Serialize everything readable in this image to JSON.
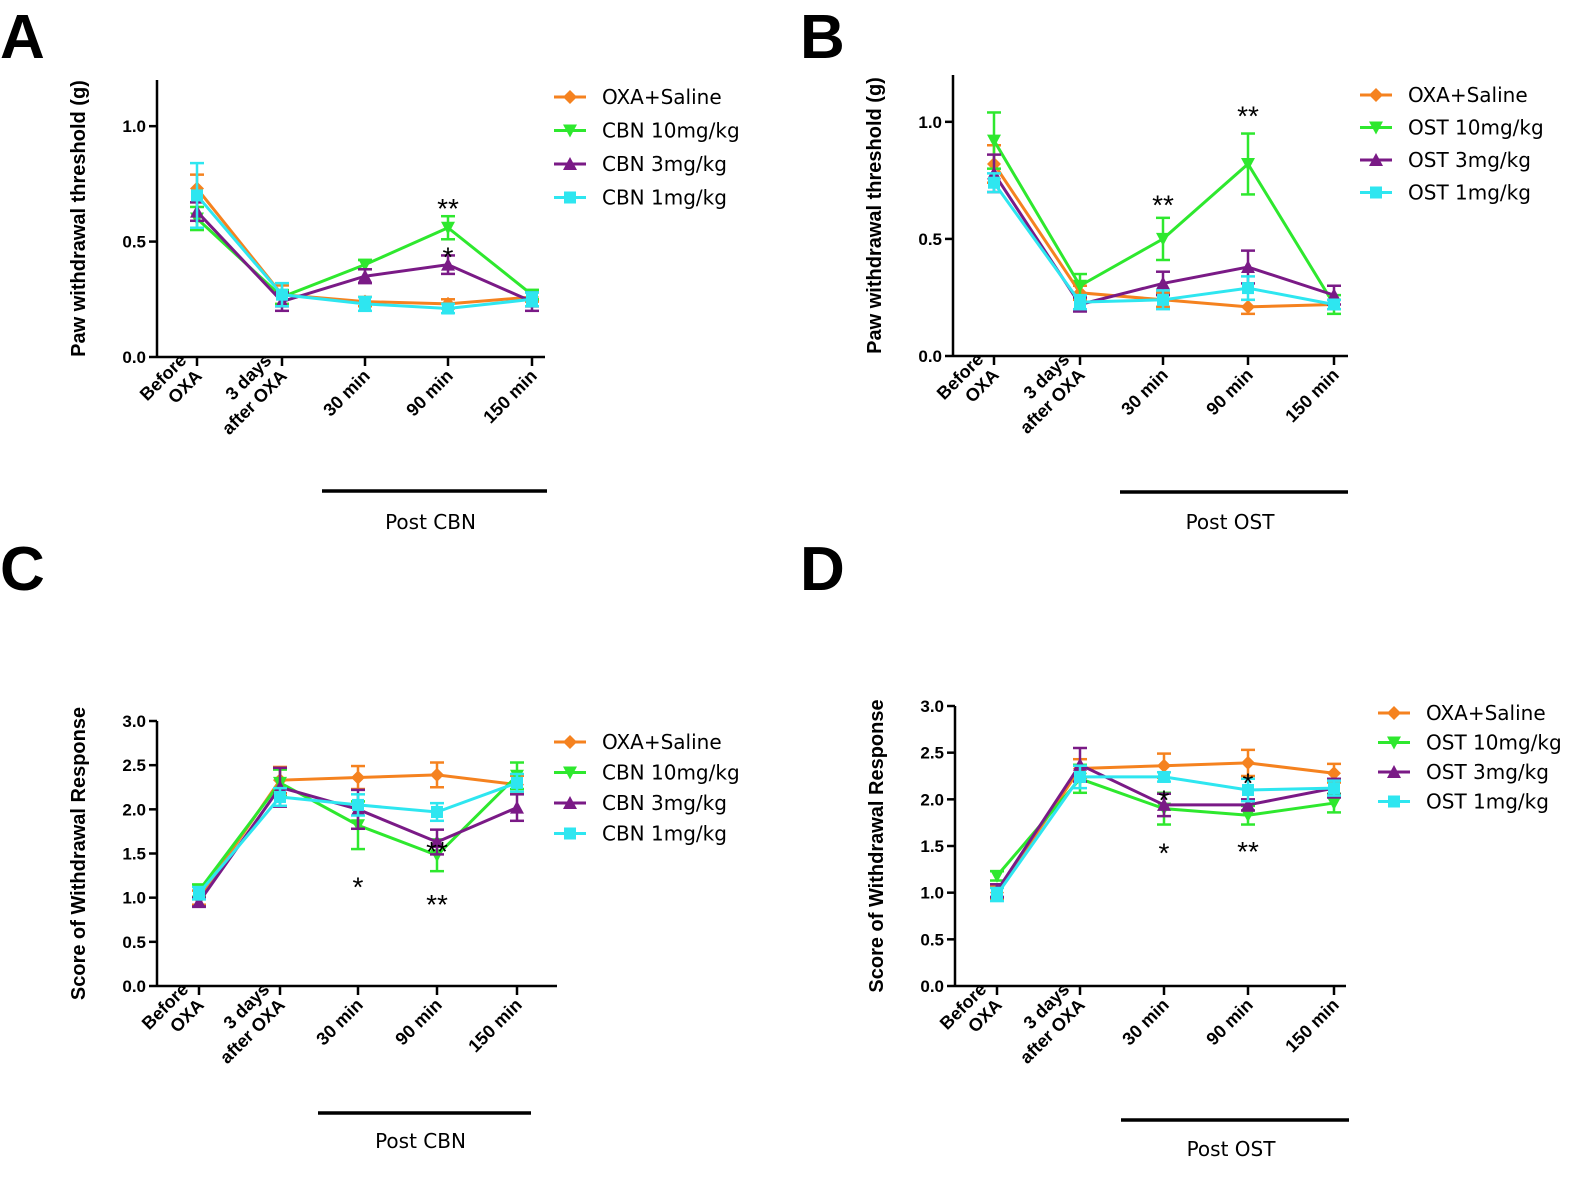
{
  "figure": {
    "categories": [
      [
        "Before",
        "OXA"
      ],
      [
        "3 days",
        "after OXA"
      ],
      [
        "30 min"
      ],
      [
        "90 min"
      ],
      [
        "150 min"
      ]
    ]
  },
  "colors": {
    "saline": "#f5821f",
    "dose10": "#2ee82e",
    "dose3": "#7a1a86",
    "dose1": "#2ee6f0",
    "axis": "#000000"
  },
  "chart_data": [
    {
      "type": "line",
      "panel": "A",
      "ylabel": "Paw withdrawal threshold (g)",
      "ylim": [
        0,
        1.2
      ],
      "yticks": [
        "0.0",
        "0.5",
        "1.0"
      ],
      "ytick_values": [
        0,
        0.5,
        1.0
      ],
      "post_label": "Post CBN",
      "series": [
        {
          "name": "OXA+Saline",
          "marker": "diamond",
          "color_key": "saline",
          "values": [
            0.73,
            0.27,
            0.24,
            0.23,
            0.26
          ],
          "errors": [
            0.06,
            0.04,
            0.02,
            0.02,
            0.02
          ]
        },
        {
          "name": "CBN 10mg/kg",
          "marker": "triangle-down",
          "color_key": "dose10",
          "values": [
            0.6,
            0.26,
            0.4,
            0.56,
            0.27
          ],
          "errors": [
            0.05,
            0.03,
            0.02,
            0.05,
            0.02
          ]
        },
        {
          "name": "CBN 3mg/kg",
          "marker": "triangle-up",
          "color_key": "dose3",
          "values": [
            0.63,
            0.24,
            0.35,
            0.4,
            0.24
          ],
          "errors": [
            0.04,
            0.04,
            0.03,
            0.04,
            0.04
          ]
        },
        {
          "name": "CBN 1mg/kg",
          "marker": "square",
          "color_key": "dose1",
          "values": [
            0.7,
            0.27,
            0.23,
            0.21,
            0.25
          ],
          "errors": [
            0.14,
            0.05,
            0.03,
            0.02,
            0.03
          ]
        }
      ],
      "annotations": [
        {
          "text": "**",
          "category": 3,
          "value": 0.655
        },
        {
          "text": "*",
          "category": 3,
          "value": 0.445
        }
      ]
    },
    {
      "type": "line",
      "panel": "B",
      "ylabel": "Paw withdrawal threshold (g)",
      "ylim": [
        0,
        1.2
      ],
      "yticks": [
        "0.0",
        "0.5",
        "1.0"
      ],
      "ytick_values": [
        0,
        0.5,
        1.0
      ],
      "post_label": "Post OST",
      "series": [
        {
          "name": "OXA+Saline",
          "marker": "diamond",
          "color_key": "saline",
          "values": [
            0.82,
            0.27,
            0.24,
            0.21,
            0.22
          ],
          "errors": [
            0.08,
            0.03,
            0.03,
            0.03,
            0.02
          ]
        },
        {
          "name": "OST 10mg/kg",
          "marker": "triangle-down",
          "color_key": "dose10",
          "values": [
            0.92,
            0.3,
            0.5,
            0.82,
            0.22
          ],
          "errors": [
            0.12,
            0.05,
            0.09,
            0.13,
            0.04
          ]
        },
        {
          "name": "OST 3mg/kg",
          "marker": "triangle-up",
          "color_key": "dose3",
          "values": [
            0.78,
            0.22,
            0.31,
            0.38,
            0.26
          ],
          "errors": [
            0.08,
            0.03,
            0.05,
            0.07,
            0.04
          ]
        },
        {
          "name": "OST 1mg/kg",
          "marker": "square",
          "color_key": "dose1",
          "values": [
            0.74,
            0.23,
            0.24,
            0.29,
            0.22
          ],
          "errors": [
            0.04,
            0.03,
            0.04,
            0.05,
            0.02
          ]
        }
      ],
      "annotations": [
        {
          "text": "**",
          "category": 2,
          "value": 0.655
        },
        {
          "text": "**",
          "category": 3,
          "value": 1.035
        }
      ]
    },
    {
      "type": "line",
      "panel": "C",
      "ylabel": "Score of Withdrawal Response",
      "ylim": [
        0,
        3.0
      ],
      "yticks": [
        "0.0",
        "0.5",
        "1.0",
        "1.5",
        "2.0",
        "2.5",
        "3.0"
      ],
      "ytick_values": [
        0,
        0.5,
        1.0,
        1.5,
        2.0,
        2.5,
        3.0
      ],
      "post_label": "Post CBN",
      "series": [
        {
          "name": "OXA+Saline",
          "marker": "diamond",
          "color_key": "saline",
          "values": [
            1.0,
            2.33,
            2.36,
            2.39,
            2.28
          ],
          "errors": [
            0.08,
            0.15,
            0.13,
            0.14,
            0.1
          ]
        },
        {
          "name": "CBN 10mg/kg",
          "marker": "triangle-down",
          "color_key": "dose10",
          "values": [
            1.08,
            2.3,
            1.82,
            1.48,
            2.38
          ],
          "errors": [
            0.07,
            0.15,
            0.27,
            0.18,
            0.15
          ]
        },
        {
          "name": "CBN 3mg/kg",
          "marker": "triangle-up",
          "color_key": "dose3",
          "values": [
            0.95,
            2.25,
            2.0,
            1.63,
            2.02
          ],
          "errors": [
            0.05,
            0.22,
            0.22,
            0.14,
            0.15
          ]
        },
        {
          "name": "CBN 1mg/kg",
          "marker": "square",
          "color_key": "dose1",
          "values": [
            1.05,
            2.14,
            2.05,
            1.97,
            2.3
          ],
          "errors": [
            0.07,
            0.1,
            0.12,
            0.1,
            0.1
          ]
        }
      ],
      "annotations": [
        {
          "text": "*",
          "category": 2,
          "value": 1.15
        },
        {
          "text": "**",
          "category": 3,
          "value": 1.55
        },
        {
          "text": "**",
          "category": 3,
          "value": 0.95
        }
      ]
    },
    {
      "type": "line",
      "panel": "D",
      "ylabel": "Score of Withdrawal Response",
      "ylim": [
        0,
        3.0
      ],
      "yticks": [
        "0.0",
        "0.5",
        "1.0",
        "1.5",
        "2.0",
        "2.5",
        "3.0"
      ],
      "ytick_values": [
        0,
        0.5,
        1.0,
        1.5,
        2.0,
        2.5,
        3.0
      ],
      "post_label": "Post OST",
      "series": [
        {
          "name": "OXA+Saline",
          "marker": "diamond",
          "color_key": "saline",
          "values": [
            1.0,
            2.33,
            2.36,
            2.39,
            2.28
          ],
          "errors": [
            0.07,
            0.1,
            0.13,
            0.14,
            0.1
          ]
        },
        {
          "name": "OST 10mg/kg",
          "marker": "triangle-down",
          "color_key": "dose10",
          "values": [
            1.18,
            2.22,
            1.9,
            1.83,
            1.96
          ],
          "errors": [
            0.05,
            0.15,
            0.17,
            0.1,
            0.1
          ]
        },
        {
          "name": "OST 3mg/kg",
          "marker": "triangle-up",
          "color_key": "dose3",
          "values": [
            1.02,
            2.37,
            1.94,
            1.94,
            2.12
          ],
          "errors": [
            0.07,
            0.18,
            0.12,
            0.06,
            0.1
          ]
        },
        {
          "name": "OST 1mg/kg",
          "marker": "square",
          "color_key": "dose1",
          "values": [
            0.98,
            2.24,
            2.24,
            2.1,
            2.12
          ],
          "errors": [
            0.07,
            0.12,
            0.05,
            0.12,
            0.08
          ]
        }
      ],
      "annotations": [
        {
          "text": "*",
          "category": 2,
          "value": 2.02
        },
        {
          "text": "*",
          "category": 2,
          "value": 1.45
        },
        {
          "text": "*",
          "category": 3,
          "value": 2.2
        },
        {
          "text": "**",
          "category": 3,
          "value": 1.47
        }
      ]
    }
  ]
}
